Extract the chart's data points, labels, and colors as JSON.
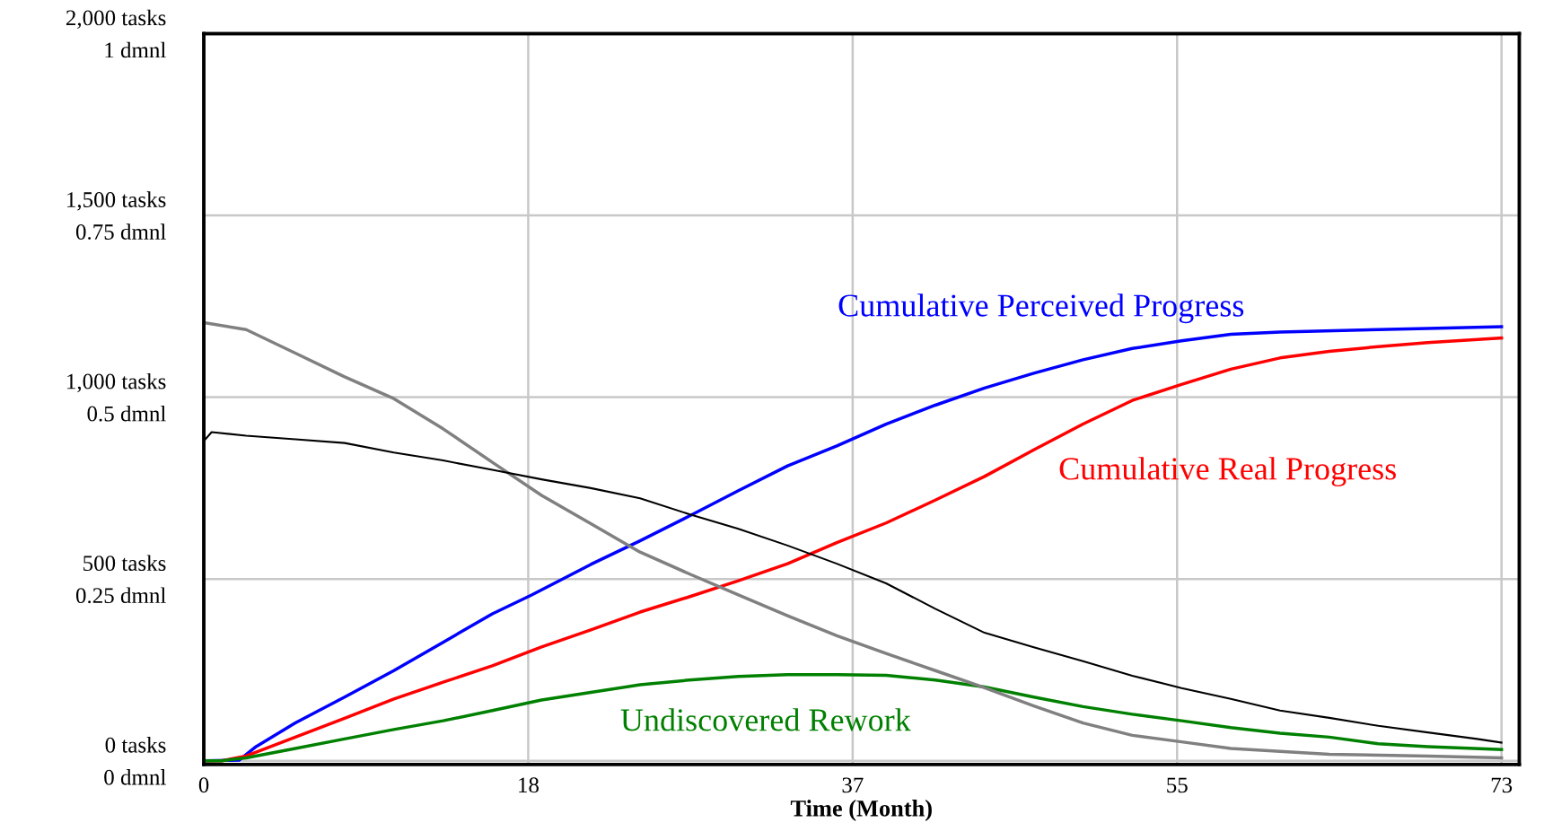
{
  "chart_data": {
    "type": "line",
    "xlabel": "Time (Month)",
    "xlim": [
      0,
      74
    ],
    "xticks": [
      0,
      {
        "value": 18.25,
        "label": "18"
      },
      {
        "value": 36.5,
        "label": "37"
      },
      {
        "value": 54.75,
        "label": "55"
      },
      73
    ],
    "ylim": [
      -10,
      2000
    ],
    "yticks": [
      {
        "value": 0,
        "label": "0 tasks"
      },
      {
        "value": 500,
        "label": "500 tasks"
      },
      {
        "value": 1000,
        "label": "1,000 tasks"
      },
      {
        "value": 1500,
        "label": "1,500 tasks"
      },
      {
        "value": 2000,
        "label": "2,000 tasks"
      }
    ],
    "y2lim": [
      -0.005,
      1
    ],
    "y2ticks": [
      {
        "value": 0,
        "label": "0 dmnl"
      },
      {
        "value": 0.25,
        "label": "0.25 dmnl"
      },
      {
        "value": 0.5,
        "label": "0.5 dmnl"
      },
      {
        "value": 0.75,
        "label": "0.75 dmnl"
      },
      {
        "value": 1,
        "label": "1 dmnl"
      }
    ],
    "grid": true,
    "legend": false,
    "marker": "none",
    "line_style": "solid",
    "series": [
      {
        "name": "Cumulative Perceived Progress",
        "color": "#0000ff",
        "x": [
          0,
          2.0,
          2.94,
          5.15,
          7.92,
          10.69,
          13.46,
          16.23,
          18.44,
          21.77,
          24.54,
          27.31,
          30.07,
          32.84,
          35.61,
          38.38,
          41.15,
          43.92,
          46.69,
          49.46,
          52.23,
          55.0,
          57.77,
          60.54,
          66.07,
          68.85,
          73
        ],
        "values": [
          0,
          2,
          39,
          104,
          175,
          248,
          326,
          404,
          456,
          540,
          605,
          673,
          743,
          811,
          866,
          926,
          978,
          1025,
          1066,
          1103,
          1134,
          1155,
          1173,
          1179,
          1186,
          1189,
          1194
        ]
      },
      {
        "name": "Cumulative Real Progress",
        "color": "#ff0000",
        "x": [
          0,
          1.0,
          2.38,
          5.15,
          7.92,
          10.69,
          13.46,
          16.23,
          19.0,
          21.77,
          24.54,
          27.31,
          30.07,
          32.84,
          35.61,
          38.38,
          41.15,
          43.92,
          46.69,
          49.46,
          52.23,
          55.0,
          57.77,
          60.54,
          63.31,
          66.07,
          68.85,
          73
        ],
        "values": [
          0,
          0,
          13,
          65,
          117,
          170,
          216,
          261,
          313,
          360,
          409,
          451,
          495,
          542,
          600,
          654,
          717,
          782,
          855,
          926,
          991,
          1035,
          1077,
          1108,
          1126,
          1139,
          1150,
          1163
        ]
      },
      {
        "name": "Undiscovered Rework",
        "color": "#008000",
        "x": [
          0,
          1.0,
          2.38,
          5.15,
          7.92,
          10.69,
          13.46,
          16.23,
          19.0,
          21.77,
          24.54,
          27.31,
          30.07,
          32.84,
          35.61,
          38.38,
          41.15,
          43.92,
          46.69,
          49.46,
          52.23,
          55.0,
          57.77,
          60.54,
          63.31,
          66.07,
          68.85,
          73
        ],
        "values": [
          0,
          0,
          8,
          34,
          60,
          86,
          110,
          138,
          167,
          188,
          209,
          222,
          232,
          237,
          237,
          235,
          222,
          203,
          175,
          149,
          128,
          110,
          91,
          76,
          65,
          47,
          39,
          31
        ]
      },
      {
        "color": "#808080",
        "x": [
          0,
          2.38,
          5.15,
          7.92,
          10.69,
          13.46,
          16.23,
          19.0,
          21.77,
          24.54,
          27.31,
          30.07,
          32.84,
          35.61,
          38.38,
          41.15,
          43.92,
          46.69,
          49.46,
          52.23,
          55.0,
          57.77,
          60.54,
          63.31,
          68.85,
          73
        ],
        "values": [
          1205,
          1186,
          1121,
          1056,
          996,
          913,
          821,
          730,
          652,
          574,
          514,
          456,
          399,
          344,
          295,
          248,
          201,
          151,
          104,
          70,
          52,
          34,
          26,
          18,
          13,
          8
        ]
      },
      {
        "color": "#000000",
        "axis": "y2",
        "x": [
          0,
          0.05,
          0.44,
          2.38,
          5.15,
          7.92,
          10.69,
          13.46,
          16.23,
          19.0,
          21.77,
          24.54,
          27.31,
          30.07,
          32.84,
          35.61,
          38.38,
          41.15,
          43.92,
          46.69,
          49.46,
          52.23,
          55.0,
          57.77,
          60.54,
          63.31,
          66.07,
          68.85,
          71.62,
          73
        ],
        "values": [
          0.78,
          0.441,
          0.452,
          0.447,
          0.442,
          0.437,
          0.424,
          0.413,
          0.4,
          0.387,
          0.375,
          0.361,
          0.339,
          0.319,
          0.296,
          0.271,
          0.244,
          0.209,
          0.176,
          0.156,
          0.137,
          0.117,
          0.1,
          0.085,
          0.069,
          0.059,
          0.048,
          0.039,
          0.03,
          0.025
        ]
      }
    ]
  }
}
